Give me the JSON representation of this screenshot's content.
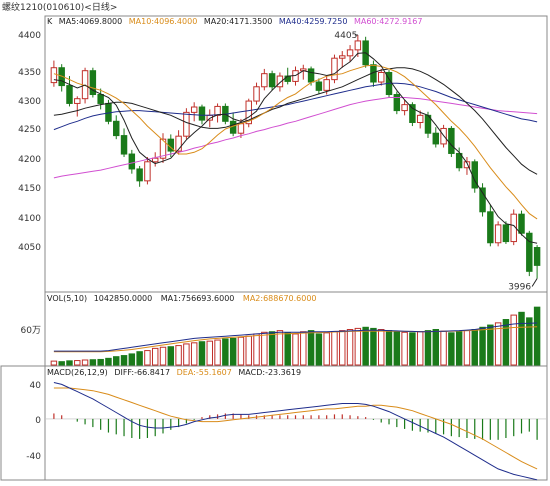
{
  "header": {
    "title": "螺纹1210(010610)<日线>"
  },
  "price_panel": {
    "label": "K",
    "indicators": [
      {
        "text": "MA5:4069.8000",
        "color": "#222222"
      },
      {
        "text": "MA10:4096.4000",
        "color": "#d98c1a"
      },
      {
        "text": "MA20:4171.3500",
        "color": "#222222"
      },
      {
        "text": "MA40:4259.7250",
        "color": "#1f2d8c"
      },
      {
        "text": "MA60:4272.9167",
        "color": "#d14fd1"
      }
    ],
    "yticks": [
      "4400",
      "4350",
      "4300",
      "4250",
      "4200",
      "4150",
      "4100",
      "4050"
    ],
    "high_label": "4405",
    "low_label": "3996"
  },
  "volume_panel": {
    "label": "VOL(5,10)",
    "indicators": [
      {
        "text": "1042850.0000",
        "color": "#222222"
      },
      {
        "text": "MA1:756693.6000",
        "color": "#222222"
      },
      {
        "text": "MA2:688670.6000",
        "color": "#d98c1a"
      }
    ],
    "ytick": "60万"
  },
  "macd_panel": {
    "label": "MACD(26,12,9)",
    "indicators": [
      {
        "text": "DIFF:-66.8417",
        "color": "#222222"
      },
      {
        "text": "DEA:-55.1607",
        "color": "#d98c1a"
      },
      {
        "text": "MACD:-23.3619",
        "color": "#222222"
      }
    ],
    "yticks": [
      "40",
      "0",
      "-40"
    ]
  },
  "colors": {
    "up": "#c0302a",
    "down": "#1a7a1a",
    "dark": "#222222",
    "ma10": "#d98c1a",
    "ma40": "#1f2d8c",
    "ma60": "#d14fd1"
  },
  "chart_data": [
    {
      "type": "candlestick",
      "ylim": [
        3980,
        4410
      ],
      "candles": [
        {
          "o": 4325,
          "h": 4362,
          "l": 4318,
          "c": 4350
        },
        {
          "o": 4350,
          "h": 4356,
          "l": 4310,
          "c": 4320
        },
        {
          "o": 4320,
          "h": 4336,
          "l": 4285,
          "c": 4290
        },
        {
          "o": 4290,
          "h": 4302,
          "l": 4268,
          "c": 4298
        },
        {
          "o": 4298,
          "h": 4350,
          "l": 4290,
          "c": 4345
        },
        {
          "o": 4345,
          "h": 4350,
          "l": 4300,
          "c": 4305
        },
        {
          "o": 4305,
          "h": 4315,
          "l": 4280,
          "c": 4290
        },
        {
          "o": 4290,
          "h": 4296,
          "l": 4255,
          "c": 4260
        },
        {
          "o": 4260,
          "h": 4270,
          "l": 4230,
          "c": 4236
        },
        {
          "o": 4236,
          "h": 4248,
          "l": 4200,
          "c": 4205
        },
        {
          "o": 4205,
          "h": 4212,
          "l": 4172,
          "c": 4180
        },
        {
          "o": 4180,
          "h": 4185,
          "l": 4150,
          "c": 4160
        },
        {
          "o": 4160,
          "h": 4200,
          "l": 4154,
          "c": 4192
        },
        {
          "o": 4192,
          "h": 4208,
          "l": 4184,
          "c": 4198
        },
        {
          "o": 4198,
          "h": 4240,
          "l": 4190,
          "c": 4230
        },
        {
          "o": 4230,
          "h": 4238,
          "l": 4200,
          "c": 4210
        },
        {
          "o": 4210,
          "h": 4245,
          "l": 4204,
          "c": 4235
        },
        {
          "o": 4235,
          "h": 4282,
          "l": 4230,
          "c": 4275
        },
        {
          "o": 4275,
          "h": 4292,
          "l": 4260,
          "c": 4284
        },
        {
          "o": 4284,
          "h": 4288,
          "l": 4255,
          "c": 4262
        },
        {
          "o": 4262,
          "h": 4280,
          "l": 4250,
          "c": 4270
        },
        {
          "o": 4270,
          "h": 4290,
          "l": 4258,
          "c": 4285
        },
        {
          "o": 4285,
          "h": 4290,
          "l": 4255,
          "c": 4260
        },
        {
          "o": 4260,
          "h": 4275,
          "l": 4235,
          "c": 4240
        },
        {
          "o": 4240,
          "h": 4264,
          "l": 4232,
          "c": 4256
        },
        {
          "o": 4256,
          "h": 4298,
          "l": 4250,
          "c": 4294
        },
        {
          "o": 4294,
          "h": 4325,
          "l": 4288,
          "c": 4318
        },
        {
          "o": 4318,
          "h": 4348,
          "l": 4312,
          "c": 4340
        },
        {
          "o": 4340,
          "h": 4345,
          "l": 4312,
          "c": 4318
        },
        {
          "o": 4318,
          "h": 4342,
          "l": 4310,
          "c": 4336
        },
        {
          "o": 4336,
          "h": 4350,
          "l": 4322,
          "c": 4327
        },
        {
          "o": 4327,
          "h": 4352,
          "l": 4320,
          "c": 4345
        },
        {
          "o": 4345,
          "h": 4355,
          "l": 4330,
          "c": 4348
        },
        {
          "o": 4348,
          "h": 4352,
          "l": 4320,
          "c": 4326
        },
        {
          "o": 4326,
          "h": 4332,
          "l": 4306,
          "c": 4312
        },
        {
          "o": 4312,
          "h": 4336,
          "l": 4305,
          "c": 4330
        },
        {
          "o": 4330,
          "h": 4372,
          "l": 4324,
          "c": 4366
        },
        {
          "o": 4366,
          "h": 4378,
          "l": 4350,
          "c": 4370
        },
        {
          "o": 4370,
          "h": 4388,
          "l": 4360,
          "c": 4380
        },
        {
          "o": 4380,
          "h": 4405,
          "l": 4368,
          "c": 4395
        },
        {
          "o": 4395,
          "h": 4402,
          "l": 4350,
          "c": 4355
        },
        {
          "o": 4355,
          "h": 4362,
          "l": 4318,
          "c": 4326
        },
        {
          "o": 4326,
          "h": 4348,
          "l": 4320,
          "c": 4342
        },
        {
          "o": 4342,
          "h": 4346,
          "l": 4300,
          "c": 4305
        },
        {
          "o": 4305,
          "h": 4310,
          "l": 4272,
          "c": 4278
        },
        {
          "o": 4278,
          "h": 4296,
          "l": 4270,
          "c": 4288
        },
        {
          "o": 4288,
          "h": 4292,
          "l": 4252,
          "c": 4258
        },
        {
          "o": 4258,
          "h": 4278,
          "l": 4248,
          "c": 4270
        },
        {
          "o": 4270,
          "h": 4276,
          "l": 4232,
          "c": 4240
        },
        {
          "o": 4240,
          "h": 4250,
          "l": 4216,
          "c": 4222
        },
        {
          "o": 4222,
          "h": 4254,
          "l": 4216,
          "c": 4248
        },
        {
          "o": 4248,
          "h": 4252,
          "l": 4200,
          "c": 4206
        },
        {
          "o": 4206,
          "h": 4216,
          "l": 4176,
          "c": 4182
        },
        {
          "o": 4182,
          "h": 4200,
          "l": 4170,
          "c": 4192
        },
        {
          "o": 4192,
          "h": 4196,
          "l": 4140,
          "c": 4148
        },
        {
          "o": 4148,
          "h": 4156,
          "l": 4100,
          "c": 4108
        },
        {
          "o": 4108,
          "h": 4120,
          "l": 4050,
          "c": 4056
        },
        {
          "o": 4056,
          "h": 4092,
          "l": 4050,
          "c": 4086
        },
        {
          "o": 4086,
          "h": 4092,
          "l": 4054,
          "c": 4058
        },
        {
          "o": 4058,
          "h": 4112,
          "l": 4052,
          "c": 4104
        },
        {
          "o": 4104,
          "h": 4110,
          "l": 4068,
          "c": 4072
        },
        {
          "o": 4072,
          "h": 4076,
          "l": 4000,
          "c": 4008
        },
        {
          "o": 4048,
          "h": 4052,
          "l": 3996,
          "c": 4018
        }
      ],
      "ma5": [
        4330,
        4328,
        4322,
        4316,
        4321,
        4312,
        4306,
        4300,
        4287,
        4262,
        4232,
        4208,
        4197,
        4189,
        4193,
        4198,
        4213,
        4229,
        4241,
        4252,
        4265,
        4271,
        4272,
        4264,
        4260,
        4267,
        4277,
        4298,
        4312,
        4325,
        4336,
        4337,
        4345,
        4342,
        4340,
        4337,
        4340,
        4351,
        4360,
        4374,
        4375,
        4365,
        4353,
        4331,
        4312,
        4296,
        4282,
        4275,
        4270,
        4254,
        4236,
        4220,
        4208,
        4190,
        4160,
        4140,
        4120,
        4100,
        4088,
        4085,
        4070,
        4058,
        4055
      ],
      "ma10": [
        4340,
        4336,
        4330,
        4324,
        4320,
        4316,
        4312,
        4306,
        4299,
        4290,
        4278,
        4266,
        4252,
        4240,
        4228,
        4216,
        4205,
        4205,
        4208,
        4214,
        4225,
        4237,
        4247,
        4252,
        4256,
        4260,
        4266,
        4274,
        4282,
        4292,
        4300,
        4306,
        4316,
        4325,
        4330,
        4336,
        4338,
        4340,
        4345,
        4349,
        4353,
        4354,
        4352,
        4348,
        4343,
        4335,
        4324,
        4312,
        4300,
        4288,
        4274,
        4260,
        4248,
        4234,
        4218,
        4200,
        4182,
        4166,
        4150,
        4136,
        4120,
        4105,
        4096
      ],
      "ma20": [
        4270,
        4272,
        4275,
        4278,
        4282,
        4285,
        4288,
        4290,
        4292,
        4292,
        4290,
        4286,
        4282,
        4278,
        4274,
        4270,
        4264,
        4258,
        4254,
        4250,
        4248,
        4248,
        4250,
        4254,
        4258,
        4262,
        4268,
        4274,
        4280,
        4284,
        4290,
        4294,
        4298,
        4302,
        4306,
        4310,
        4314,
        4318,
        4324,
        4330,
        4336,
        4342,
        4346,
        4348,
        4350,
        4350,
        4348,
        4344,
        4338,
        4330,
        4322,
        4312,
        4302,
        4290,
        4278,
        4264,
        4248,
        4232,
        4216,
        4202,
        4188,
        4178,
        4171
      ],
      "ma40": [
        4246,
        4251,
        4256,
        4260,
        4265,
        4269,
        4272,
        4274,
        4276,
        4277,
        4278,
        4278,
        4277,
        4276,
        4275,
        4274,
        4273,
        4272,
        4271,
        4270,
        4270,
        4271,
        4272,
        4274,
        4276,
        4278,
        4280,
        4282,
        4284,
        4286,
        4288,
        4291,
        4294,
        4297,
        4300,
        4303,
        4306,
        4309,
        4312,
        4315,
        4318,
        4320,
        4322,
        4324,
        4324,
        4323,
        4321,
        4318,
        4314,
        4310,
        4305,
        4300,
        4296,
        4292,
        4288,
        4284,
        4280,
        4276,
        4272,
        4268,
        4264,
        4262,
        4259
      ],
      "ma60": [
        4165,
        4168,
        4170,
        4172,
        4174,
        4176,
        4178,
        4181,
        4184,
        4187,
        4190,
        4193,
        4196,
        4199,
        4202,
        4205,
        4208,
        4211,
        4215,
        4218,
        4222,
        4225,
        4229,
        4232,
        4236,
        4239,
        4243,
        4246,
        4250,
        4253,
        4257,
        4260,
        4264,
        4268,
        4272,
        4276,
        4280,
        4284,
        4288,
        4291,
        4294,
        4296,
        4298,
        4300,
        4300,
        4300,
        4299,
        4298,
        4296,
        4294,
        4292,
        4290,
        4288,
        4286,
        4284,
        4282,
        4280,
        4278,
        4277,
        4276,
        4275,
        4274,
        4273
      ]
    },
    {
      "type": "bar",
      "ylim": [
        0,
        1100000
      ],
      "values": [
        70000,
        60000,
        75000,
        80000,
        90000,
        95000,
        100000,
        120000,
        150000,
        170000,
        200000,
        240000,
        260000,
        300000,
        320000,
        330000,
        350000,
        380000,
        400000,
        420000,
        430000,
        450000,
        470000,
        480000,
        500000,
        520000,
        560000,
        590000,
        600000,
        620000,
        580000,
        560000,
        600000,
        620000,
        560000,
        580000,
        600000,
        620000,
        640000,
        660000,
        680000,
        660000,
        640000,
        620000,
        600000,
        590000,
        580000,
        600000,
        620000,
        640000,
        610000,
        580000,
        600000,
        620000,
        640000,
        680000,
        720000,
        760000,
        820000,
        900000,
        950000,
        850000,
        1042850
      ],
      "ma1": [
        250000,
        250000,
        250000,
        250000,
        250000,
        250000,
        250000,
        260000,
        280000,
        300000,
        320000,
        340000,
        360000,
        380000,
        400000,
        420000,
        440000,
        460000,
        480000,
        490000,
        500000,
        510000,
        520000,
        530000,
        540000,
        550000,
        560000,
        570000,
        580000,
        590000,
        590000,
        590000,
        590000,
        600000,
        600000,
        600000,
        605000,
        610000,
        615000,
        620000,
        625000,
        625000,
        625000,
        620000,
        615000,
        610000,
        605000,
        600000,
        600000,
        605000,
        610000,
        615000,
        620000,
        630000,
        640000,
        660000,
        680000,
        700000,
        720000,
        740000,
        750000,
        752000,
        756693
      ],
      "ma2": [
        240000,
        240000,
        240000,
        240000,
        240000,
        240000,
        240000,
        245000,
        255000,
        265000,
        280000,
        300000,
        320000,
        340000,
        360000,
        380000,
        400000,
        420000,
        440000,
        455000,
        470000,
        480000,
        490000,
        500000,
        510000,
        520000,
        530000,
        540000,
        550000,
        560000,
        565000,
        570000,
        575000,
        580000,
        585000,
        590000,
        595000,
        600000,
        605000,
        610000,
        612000,
        612000,
        612000,
        610000,
        608000,
        606000,
        604000,
        602000,
        602000,
        604000,
        606000,
        610000,
        614000,
        620000,
        628000,
        636000,
        646000,
        656000,
        666000,
        676000,
        682000,
        686000,
        688670
      ]
    },
    {
      "type": "line",
      "ylim": [
        -65,
        45
      ],
      "diff": [
        40,
        38,
        34,
        30,
        26,
        22,
        17,
        12,
        7,
        2,
        -3,
        -7,
        -9,
        -10,
        -10,
        -9,
        -8,
        -6,
        -3,
        -1,
        1,
        2,
        4,
        5,
        5,
        5,
        6,
        7,
        8,
        9,
        10,
        11,
        12,
        13,
        14,
        15,
        16,
        17,
        17,
        17,
        16,
        14,
        11,
        8,
        4,
        0,
        -4,
        -8,
        -12,
        -16,
        -20,
        -25,
        -30,
        -35,
        -40,
        -45,
        -50,
        -55,
        -58,
        -61,
        -63,
        -65,
        -67
      ],
      "dea": [
        34,
        34,
        34,
        33,
        32,
        31,
        29,
        27,
        24,
        21,
        18,
        15,
        12,
        9,
        6,
        3,
        1,
        -1,
        -2,
        -3,
        -3,
        -3,
        -2,
        -1,
        0,
        1,
        2,
        3,
        4,
        5,
        6,
        7,
        8,
        9,
        10,
        11,
        11,
        12,
        13,
        14,
        14,
        15,
        15,
        14,
        13,
        11,
        9,
        6,
        3,
        0,
        -3,
        -6,
        -10,
        -14,
        -18,
        -22,
        -27,
        -32,
        -37,
        -42,
        -47,
        -51,
        -55
      ],
      "macd": [
        6,
        4,
        0,
        -3,
        -6,
        -9,
        -12,
        -15,
        -17,
        -19,
        -21,
        -22,
        -21,
        -19,
        -16,
        -12,
        -9,
        -5,
        -1,
        2,
        4,
        5,
        6,
        6,
        5,
        4,
        4,
        4,
        4,
        4,
        4,
        4,
        4,
        4,
        4,
        4,
        5,
        5,
        4,
        3,
        2,
        -1,
        -4,
        -6,
        -9,
        -11,
        -13,
        -14,
        -15,
        -16,
        -17,
        -19,
        -20,
        -21,
        -22,
        -23,
        -23,
        -23,
        -21,
        -19,
        -16,
        -14,
        -23
      ]
    }
  ]
}
